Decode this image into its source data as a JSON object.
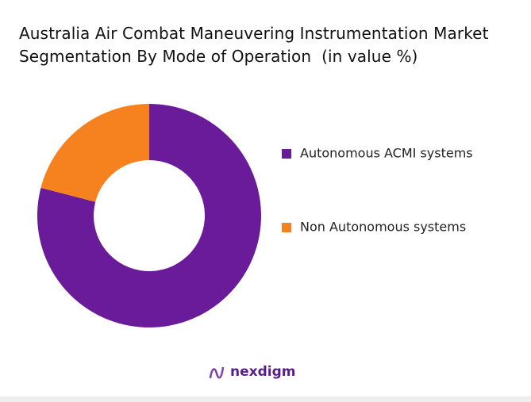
{
  "chart_data": {
    "type": "donut",
    "title": "Australia Air Combat Maneuvering Instrumentation Market Segmentation By Mode of Operation  (in value %)",
    "categories": [
      "Autonomous ACMI systems",
      "Non Autonomous systems"
    ],
    "values": [
      79,
      21
    ],
    "colors": [
      "#6a1b9a",
      "#f5821f"
    ]
  },
  "logo": "nexdigm"
}
